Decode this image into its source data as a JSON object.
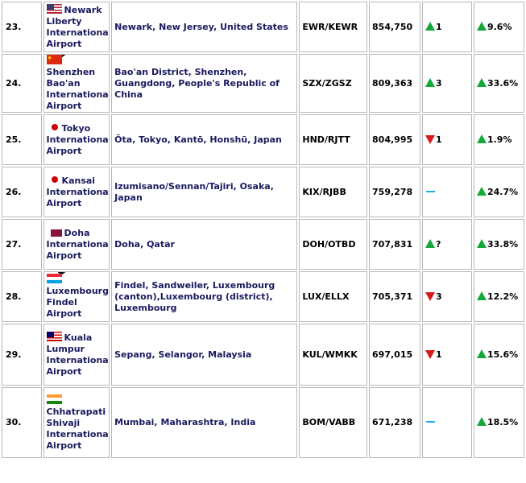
{
  "rows": [
    {
      "rank": "23.",
      "flag": "us-flag-icon",
      "airport": "Newark Liberty International Airport",
      "location": "Newark, New Jersey, United States",
      "code": "EWR/KEWR",
      "passengers": "854,750",
      "rank_change_icon": "up",
      "rank_change": "1",
      "pct_change": "9.6%",
      "checked": false
    },
    {
      "rank": "24.",
      "flag": "china-flag-icon",
      "airport": "Shenzhen Bao'an International Airport",
      "location": "Bao'an District, Shenzhen, Guangdong, People's Republic of China",
      "code": "SZX/ZGSZ",
      "passengers": "809,363",
      "rank_change_icon": "up",
      "rank_change": "3",
      "pct_change": "33.6%",
      "checked": true
    },
    {
      "rank": "25.",
      "flag": "japan-flag-icon",
      "airport": "Tokyo International Airport",
      "location": "Ōta, Tokyo, Kantō, Honshū, Japan",
      "code": "HND/RJTT",
      "passengers": "804,995",
      "rank_change_icon": "down",
      "rank_change": "1",
      "pct_change": "1.9%",
      "checked": false
    },
    {
      "rank": "26.",
      "flag": "japan-flag-icon",
      "airport": "Kansai International Airport",
      "location": "Izumisano/Sennan/Tajiri, Osaka, Japan",
      "code": "KIX/RJBB",
      "passengers": "759,278",
      "rank_change_icon": "none",
      "rank_change": "",
      "pct_change": "24.7%",
      "checked": false
    },
    {
      "rank": "27.",
      "flag": "qatar-flag-icon",
      "airport": "Doha International Airport",
      "location": "Doha, Qatar",
      "code": "DOH/OTBD",
      "passengers": "707,831",
      "rank_change_icon": "up",
      "rank_change": "?",
      "pct_change": "33.8%",
      "checked": false
    },
    {
      "rank": "28.",
      "flag": "luxembourg-flag-icon",
      "airport": "Luxembourg-Findel Airport",
      "location": "Findel, Sandweiler, Luxembourg (canton),Luxembourg (district), Luxembourg",
      "code": "LUX/ELLX",
      "passengers": "705,371",
      "rank_change_icon": "down",
      "rank_change": "3",
      "pct_change": "12.2%",
      "checked": true
    },
    {
      "rank": "29.",
      "flag": "malaysia-flag-icon",
      "airport": "Kuala Lumpur International Airport",
      "location": "Sepang, Selangor, Malaysia",
      "code": "KUL/WMKK",
      "passengers": "697,015",
      "rank_change_icon": "down",
      "rank_change": "1",
      "pct_change": "15.6%",
      "checked": false
    },
    {
      "rank": "30.",
      "flag": "india-flag-icon",
      "airport": "Chhatrapati Shivaji International Airport",
      "location": "Mumbai, Maharashtra, India",
      "code": "BOM/VABB",
      "passengers": "671,238",
      "rank_change_icon": "none",
      "rank_change": "",
      "pct_change": "18.5%",
      "checked": false
    }
  ]
}
